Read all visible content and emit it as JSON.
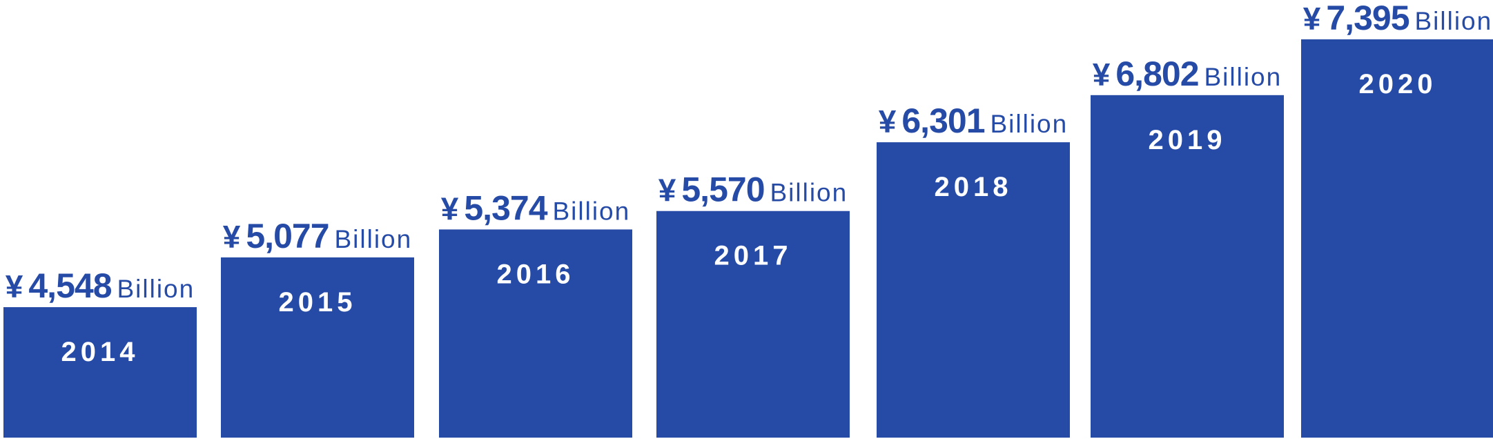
{
  "chart_data": {
    "type": "bar",
    "categories": [
      "2014",
      "2015",
      "2016",
      "2017",
      "2018",
      "2019",
      "2020"
    ],
    "values": [
      4548,
      5077,
      5374,
      5570,
      6301,
      6802,
      7395
    ],
    "value_labels": [
      {
        "currency": "¥",
        "number": "4,548",
        "unit": "Billion"
      },
      {
        "currency": "¥",
        "number": "5,077",
        "unit": "Billion"
      },
      {
        "currency": "¥",
        "number": "5,374",
        "unit": "Billion"
      },
      {
        "currency": "¥",
        "number": "5,570",
        "unit": "Billion"
      },
      {
        "currency": "¥",
        "number": "6,301",
        "unit": "Billion"
      },
      {
        "currency": "¥",
        "number": "6,802",
        "unit": "Billion"
      },
      {
        "currency": "¥",
        "number": "7,395",
        "unit": "Billion"
      }
    ],
    "title": "",
    "xlabel": "",
    "ylabel": "",
    "grid": false,
    "legend": "none",
    "colors": {
      "bar": "#264ba6",
      "category_label": "#ffffff",
      "value_label": "#264ba6",
      "background": "#ffffff"
    }
  }
}
